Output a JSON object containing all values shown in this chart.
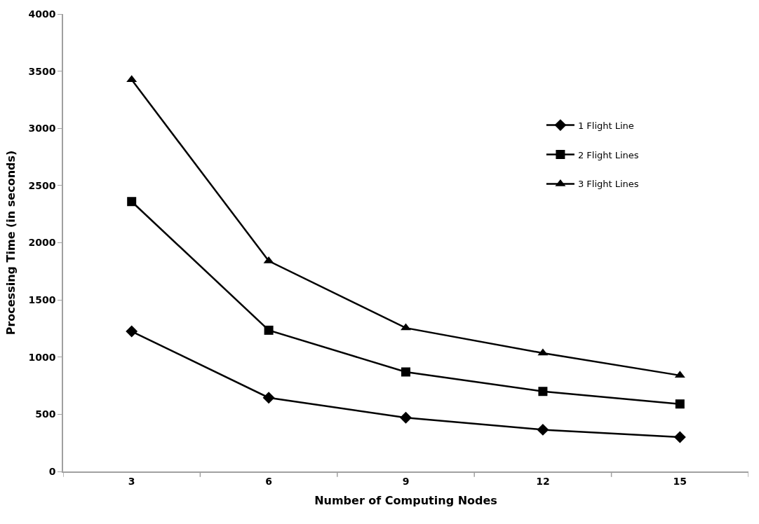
{
  "chart_data": {
    "type": "line",
    "xlabel": "Number of Computing Nodes",
    "ylabel": "Processing Time (in seconds)",
    "categories": [
      "3",
      "6",
      "9",
      "12",
      "15"
    ],
    "series": [
      {
        "name": "1 Flight Line",
        "color": "#000000",
        "marker": "diamond",
        "values": [
          1225,
          645,
          470,
          365,
          300
        ]
      },
      {
        "name": "2 Flight Lines",
        "color": "#000000",
        "marker": "square",
        "values": [
          2360,
          1235,
          870,
          700,
          590
        ]
      },
      {
        "name": "3 Flight Lines",
        "color": "#000000",
        "marker": "triangle",
        "values": [
          3425,
          1840,
          1255,
          1035,
          840
        ]
      }
    ],
    "ylim": [
      0,
      4000
    ],
    "yticks": [
      0,
      500,
      1000,
      1500,
      2000,
      2500,
      3000,
      3500,
      4000
    ],
    "legend": "right",
    "line_style": "solid"
  }
}
